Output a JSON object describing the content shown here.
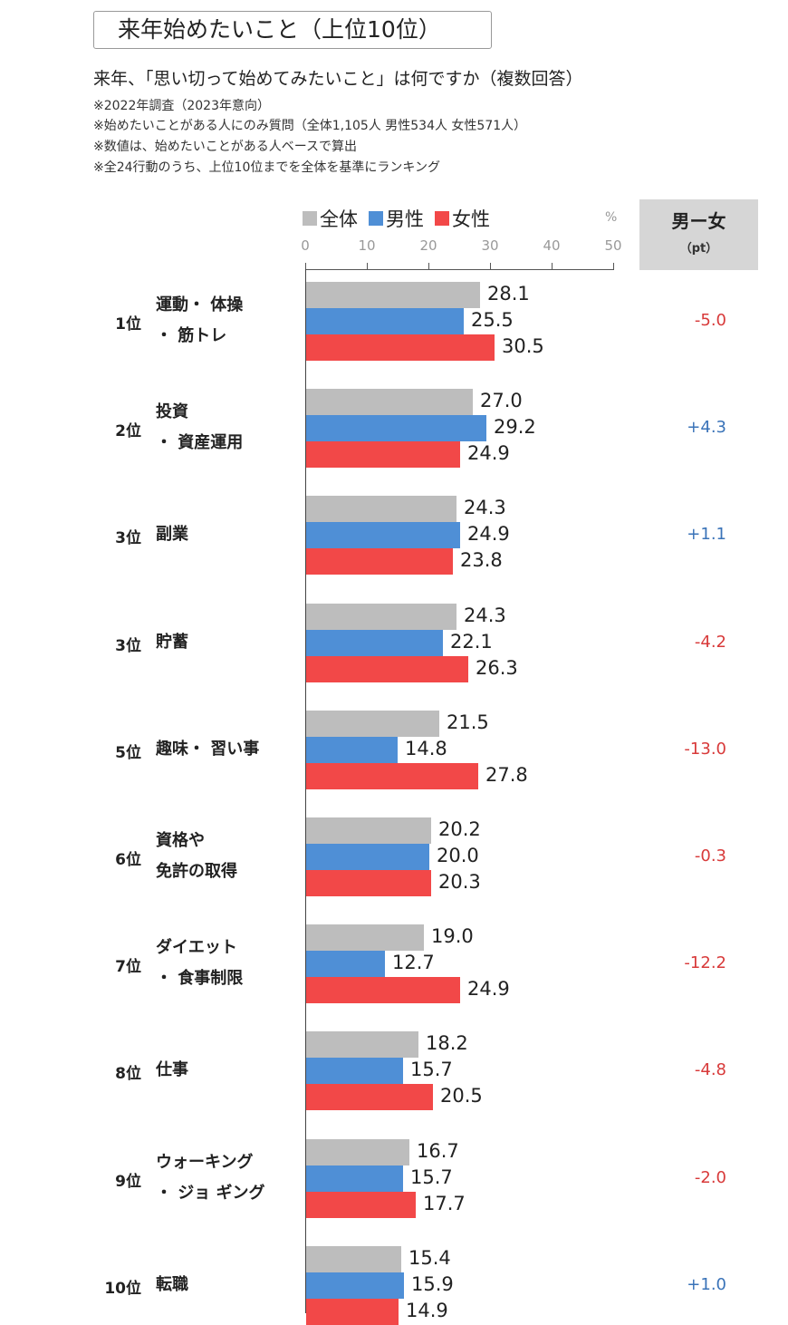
{
  "header": {
    "title": "来年始めたいこと（上位10位）",
    "question": "来年、「思い切って始めてみたいこと」は何ですか（複数回答）",
    "notes": [
      "※2022年調査（2023年意向）",
      "※始めたいことがある人にのみ質問（全体1,105人 男性534人 女性571人）",
      "※数値は、始めたいことがある人ベースで算出",
      "※全24行動のうち、上位10位までを全体を基準にランキング"
    ]
  },
  "legend": [
    {
      "label": "全体",
      "color": "#bdbdbd"
    },
    {
      "label": "男性",
      "color": "#4f8fd6"
    },
    {
      "label": "女性",
      "color": "#f24848"
    }
  ],
  "axis": {
    "unit": "%",
    "ticks": [
      "0",
      "10",
      "20",
      "30",
      "40",
      "50"
    ]
  },
  "diff_column": {
    "title": "男ー女",
    "unit": "（pt）",
    "positive_color": "#3a73b8",
    "negative_color": "#d83a3a"
  },
  "chart_data": {
    "type": "bar",
    "orientation": "horizontal",
    "title": "来年始めたいこと（上位10位）",
    "subtitle": "来年、「思い切って始めてみたいこと」は何ですか（複数回答）",
    "xlabel": "%",
    "ylabel": "",
    "xlim": [
      0,
      50
    ],
    "x_ticks": [
      0,
      10,
      20,
      30,
      40,
      50
    ],
    "grid": false,
    "legend_position": "top",
    "categories": [
      "運動・体操・筋トレ",
      "投資・資産運用",
      "副業",
      "貯蓄",
      "趣味・習い事",
      "資格や免許の取得",
      "ダイエット・食事制限",
      "仕事",
      "ウォーキング・ジョギング",
      "転職"
    ],
    "ranks": [
      "1位",
      "2位",
      "3位",
      "3位",
      "5位",
      "6位",
      "7位",
      "8位",
      "9位",
      "10位"
    ],
    "series": [
      {
        "name": "全体",
        "color": "#bdbdbd",
        "values": [
          28.1,
          27.0,
          24.3,
          24.3,
          21.5,
          20.2,
          19.0,
          18.2,
          16.7,
          15.4
        ]
      },
      {
        "name": "男性",
        "color": "#4f8fd6",
        "values": [
          25.5,
          29.2,
          24.9,
          22.1,
          14.8,
          20.0,
          12.7,
          15.7,
          15.7,
          15.9
        ]
      },
      {
        "name": "女性",
        "color": "#f24848",
        "values": [
          30.5,
          24.9,
          23.8,
          26.3,
          27.8,
          20.3,
          24.9,
          20.5,
          17.7,
          14.9
        ]
      }
    ],
    "difference_male_minus_female_pt": [
      "-5.0",
      "+4.3",
      "+1.1",
      "-4.2",
      "-13.0",
      "-0.3",
      "-12.2",
      "-4.8",
      "-2.0",
      "+1.0"
    ]
  },
  "rows": [
    {
      "rank": "1位",
      "label_lines": [
        "運動・ 体操",
        "・ 筋トレ"
      ],
      "all": "28.1",
      "male": "25.5",
      "female": "30.5",
      "diff": "-5.0"
    },
    {
      "rank": "2位",
      "label_lines": [
        "投資",
        "・ 資産運用"
      ],
      "all": "27.0",
      "male": "29.2",
      "female": "24.9",
      "diff": "+4.3"
    },
    {
      "rank": "3位",
      "label_lines": [
        "副業"
      ],
      "all": "24.3",
      "male": "24.9",
      "female": "23.8",
      "diff": "+1.1"
    },
    {
      "rank": "3位",
      "label_lines": [
        "貯蓄"
      ],
      "all": "24.3",
      "male": "22.1",
      "female": "26.3",
      "diff": "-4.2"
    },
    {
      "rank": "5位",
      "label_lines": [
        "趣味・ 習い事"
      ],
      "all": "21.5",
      "male": "14.8",
      "female": "27.8",
      "diff": "-13.0"
    },
    {
      "rank": "6位",
      "label_lines": [
        "資格や",
        "免許の取得"
      ],
      "all": "20.2",
      "male": "20.0",
      "female": "20.3",
      "diff": "-0.3"
    },
    {
      "rank": "7位",
      "label_lines": [
        "ダイエット",
        "・ 食事制限"
      ],
      "all": "19.0",
      "male": "12.7",
      "female": "24.9",
      "diff": "-12.2"
    },
    {
      "rank": "8位",
      "label_lines": [
        "仕事"
      ],
      "all": "18.2",
      "male": "15.7",
      "female": "20.5",
      "diff": "-4.8"
    },
    {
      "rank": "9位",
      "label_lines": [
        "ウォーキング",
        "・ ジョ ギング"
      ],
      "all": "16.7",
      "male": "15.7",
      "female": "17.7",
      "diff": "-2.0"
    },
    {
      "rank": "10位",
      "label_lines": [
        "転職"
      ],
      "all": "15.4",
      "male": "15.9",
      "female": "14.9",
      "diff": "+1.0"
    }
  ]
}
